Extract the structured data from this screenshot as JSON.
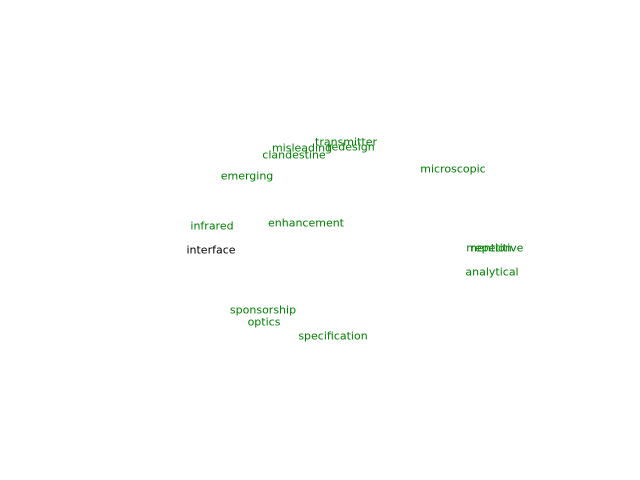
{
  "words": {
    "transmitter": {
      "text": "transmitter",
      "color": "#008000"
    },
    "misleading": {
      "text": "misleading",
      "color": "#008000"
    },
    "redesign": {
      "text": "redesign",
      "color": "#008000"
    },
    "clandestine": {
      "text": "clandestine",
      "color": "#008000"
    },
    "microscopic": {
      "text": "microscopic",
      "color": "#008000"
    },
    "emerging": {
      "text": "emerging",
      "color": "#008000"
    },
    "infrared": {
      "text": "infrared",
      "color": "#008000"
    },
    "enhancement": {
      "text": "enhancement",
      "color": "#008000"
    },
    "interface": {
      "text": "interface",
      "color": "#000000"
    },
    "repetitive": {
      "text": "repetitive",
      "color": "#008000"
    },
    "mention": {
      "text": "mention",
      "color": "#008000"
    },
    "analytical": {
      "text": "analytical",
      "color": "#008000"
    },
    "sponsorship": {
      "text": "sponsorship",
      "color": "#008000"
    },
    "optics": {
      "text": "optics",
      "color": "#008000"
    },
    "specification": {
      "text": "specification",
      "color": "#008000"
    }
  }
}
